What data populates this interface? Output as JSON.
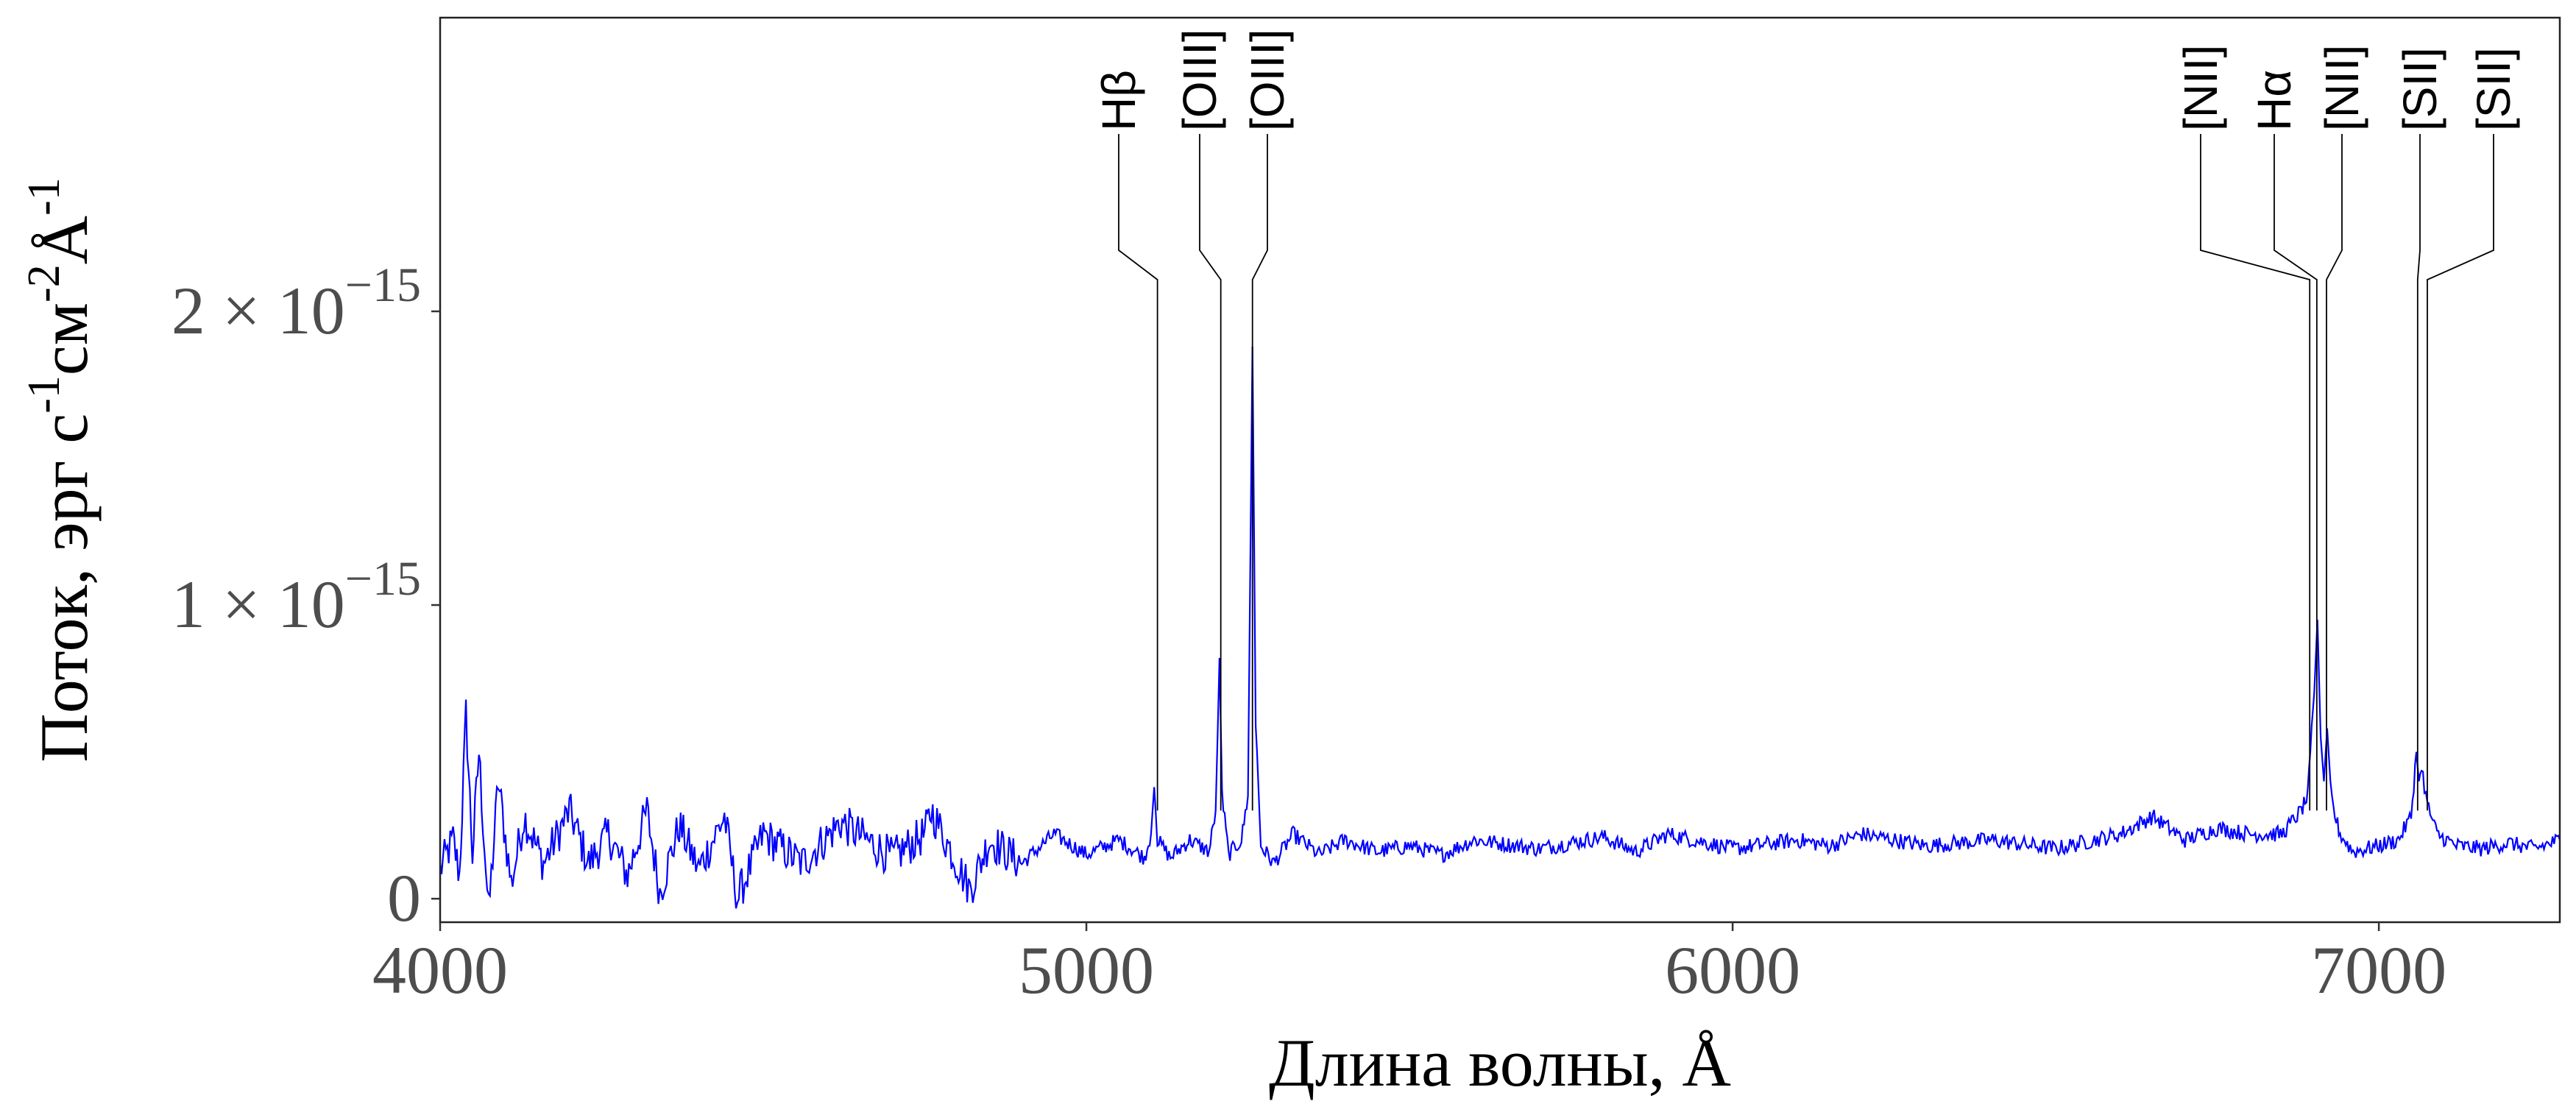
{
  "chart_data": {
    "type": "line",
    "xlabel": "Длина волны, Å",
    "ylabel": "Поток, эрг с-1см-2Å-1",
    "xlim": [
      4000,
      7280
    ],
    "ylim": [
      -8e-17,
      3e-15
    ],
    "x_ticks": [
      {
        "value": 4000,
        "label": "4000"
      },
      {
        "value": 5000,
        "label": "5000"
      },
      {
        "value": 6000,
        "label": "6000"
      },
      {
        "value": 7000,
        "label": "7000"
      }
    ],
    "y_ticks": [
      {
        "value": 0,
        "label": "0"
      },
      {
        "value": 1e-15,
        "label": "1 × 10−15"
      },
      {
        "value": 2e-15,
        "label": "2 × 10−15"
      }
    ],
    "grid": false,
    "series": [
      {
        "color": "#0000ff",
        "x": [
          4000,
          4020,
          4030,
          4040,
          4050,
          4060,
          4075,
          4090,
          4110,
          4130,
          4160,
          4200,
          4230,
          4260,
          4290,
          4320,
          4340,
          4370,
          4400,
          4440,
          4460,
          4500,
          4560,
          4620,
          4700,
          4750,
          4760,
          4800,
          4820,
          4850,
          4900,
          4950,
          5000,
          5050,
          5090,
          5100,
          5105,
          5110,
          5130,
          5160,
          5190,
          5200,
          5203,
          5206,
          5210,
          5220,
          5240,
          5250,
          5253,
          5257,
          5262,
          5270,
          5290,
          5320,
          5360,
          5400,
          5450,
          5500,
          5550,
          5600,
          5700,
          5800,
          5850,
          5900,
          6000,
          6100,
          6150,
          6200,
          6300,
          6400,
          6500,
          6600,
          6650,
          6700,
          6750,
          6800,
          6850,
          6880,
          6890,
          6900,
          6905,
          6910,
          6915,
          6920,
          6925,
          6930,
          6940,
          6960,
          7000,
          7030,
          7050,
          7058,
          7062,
          7066,
          7075,
          7090,
          7120,
          7160,
          7200,
          7240,
          7280
        ],
        "y": [
          1e-16,
          2e-16,
          8e-17,
          6.3e-16,
          1.5e-16,
          5e-16,
          -5e-17,
          4e-16,
          5e-17,
          2.8e-16,
          1.2e-16,
          3e-16,
          1.2e-16,
          2.2e-16,
          8e-17,
          3e-16,
          2e-17,
          2.5e-16,
          1e-16,
          2.8e-16,
          0.0,
          2.2e-16,
          1.2e-16,
          2.6e-16,
          1.4e-16,
          2.2e-16,
          3e-16,
          1.2e-16,
          3e-17,
          2e-16,
          1.2e-16,
          2.2e-16,
          1.5e-16,
          2e-16,
          1.4e-16,
          2.2e-16,
          3.8e-16,
          2e-16,
          1.4e-16,
          2e-16,
          1.6e-16,
          3e-16,
          5.5e-16,
          8.2e-16,
          3.5e-16,
          1.5e-16,
          2e-16,
          3.5e-16,
          1e-15,
          1.88e-15,
          6e-16,
          1.8e-16,
          1.2e-16,
          2.2e-16,
          1.5e-16,
          2e-16,
          1.6e-16,
          1.8e-16,
          1.5e-16,
          2e-16,
          1.7e-16,
          2.1e-16,
          1.6e-16,
          2.2e-16,
          1.7e-16,
          2e-16,
          1.8e-16,
          2.2e-16,
          1.8e-16,
          2e-16,
          1.7e-16,
          2.2e-16,
          2.8e-16,
          2e-16,
          2.4e-16,
          2.2e-16,
          2.2e-16,
          3e-16,
          3.5e-16,
          7e-16,
          9.5e-16,
          5.5e-16,
          4e-16,
          5.8e-16,
          4e-16,
          3e-16,
          2.2e-16,
          1.6e-16,
          1.8e-16,
          2e-16,
          2.8e-16,
          5e-16,
          4e-16,
          4.5e-16,
          3.2e-16,
          2.2e-16,
          1.8e-16,
          1.7e-16,
          1.9e-16,
          1.7e-16,
          2e-16
        ]
      }
    ],
    "annotations": [
      {
        "label": "Hβ",
        "x": 5110
      },
      {
        "label": "[OIII]",
        "x": 5208
      },
      {
        "label": "[OIII]",
        "x": 5257
      },
      {
        "label": "[NII]",
        "x": 6893
      },
      {
        "label": "Hα",
        "x": 6904
      },
      {
        "label": "[NII]",
        "x": 6919
      },
      {
        "label": "[SII]",
        "x": 7060
      },
      {
        "label": "[SII]",
        "x": 7075
      }
    ]
  }
}
